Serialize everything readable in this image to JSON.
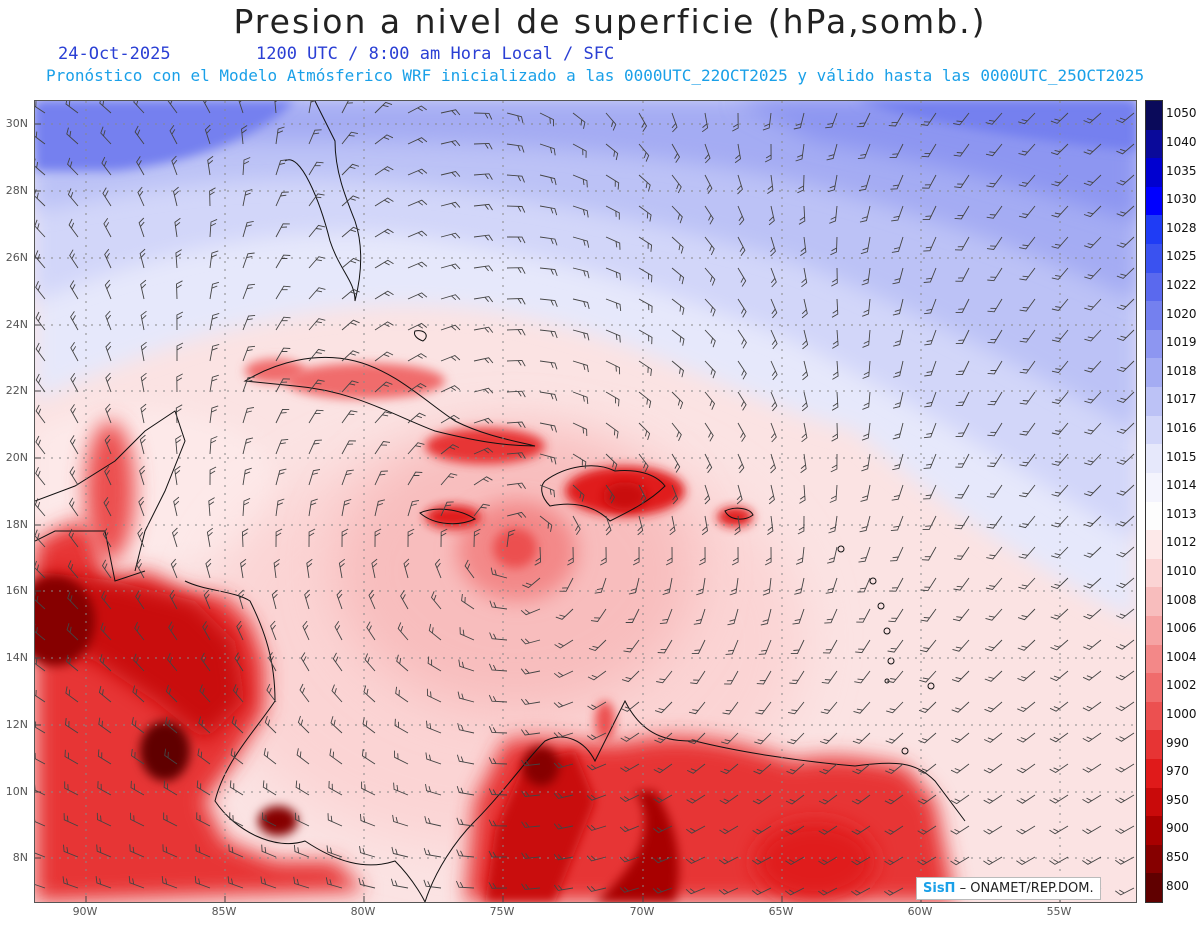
{
  "title": "Presion a nivel de superficie (hPa,somb.)",
  "date": "24-Oct-2025",
  "valid_time": "1200 UTC / 8:00 am Hora Local / SFC",
  "model_info": "Pronóstico con el Modelo Atmósferico WRF inicializado a las 0000UTC_22OCT2025 y válido hasta las  0000UTC_25OCT2025",
  "lat_labels": [
    "30N",
    "28N",
    "26N",
    "24N",
    "22N",
    "20N",
    "18N",
    "16N",
    "14N",
    "12N",
    "10N",
    "8N"
  ],
  "lon_labels": [
    "90W",
    "85W",
    "80W",
    "75W",
    "70W",
    "65W",
    "60W",
    "55W"
  ],
  "colorbar": {
    "levels": [
      "1050",
      "1040",
      "1035",
      "1030",
      "1028",
      "1025",
      "1022",
      "1020",
      "1019",
      "1018",
      "1017",
      "1016",
      "1015",
      "1014",
      "1013",
      "1012",
      "1010",
      "1008",
      "1006",
      "1004",
      "1002",
      "1000",
      "990",
      "970",
      "950",
      "900",
      "850",
      "800"
    ],
    "colors": [
      "#0a0a5a",
      "#0a0a9a",
      "#0000d0",
      "#0000ff",
      "#1f3cf5",
      "#3a52f0",
      "#5a69ee",
      "#7480ef",
      "#8d96f1",
      "#a4acf3",
      "#bcc2f6",
      "#d2d6f9",
      "#e6e8fb",
      "#f4f4fd",
      "#fdfdfd",
      "#fde9e9",
      "#fbd4d4",
      "#f8bdbd",
      "#f6a3a3",
      "#f38888",
      "#f06c6c",
      "#ec5050",
      "#e73434",
      "#e01a1a",
      "#c90a0a",
      "#a80000",
      "#860000",
      "#600000"
    ]
  },
  "credit": {
    "logo": "SisΠ",
    "org": "– ONAMET/REP.DOM."
  }
}
